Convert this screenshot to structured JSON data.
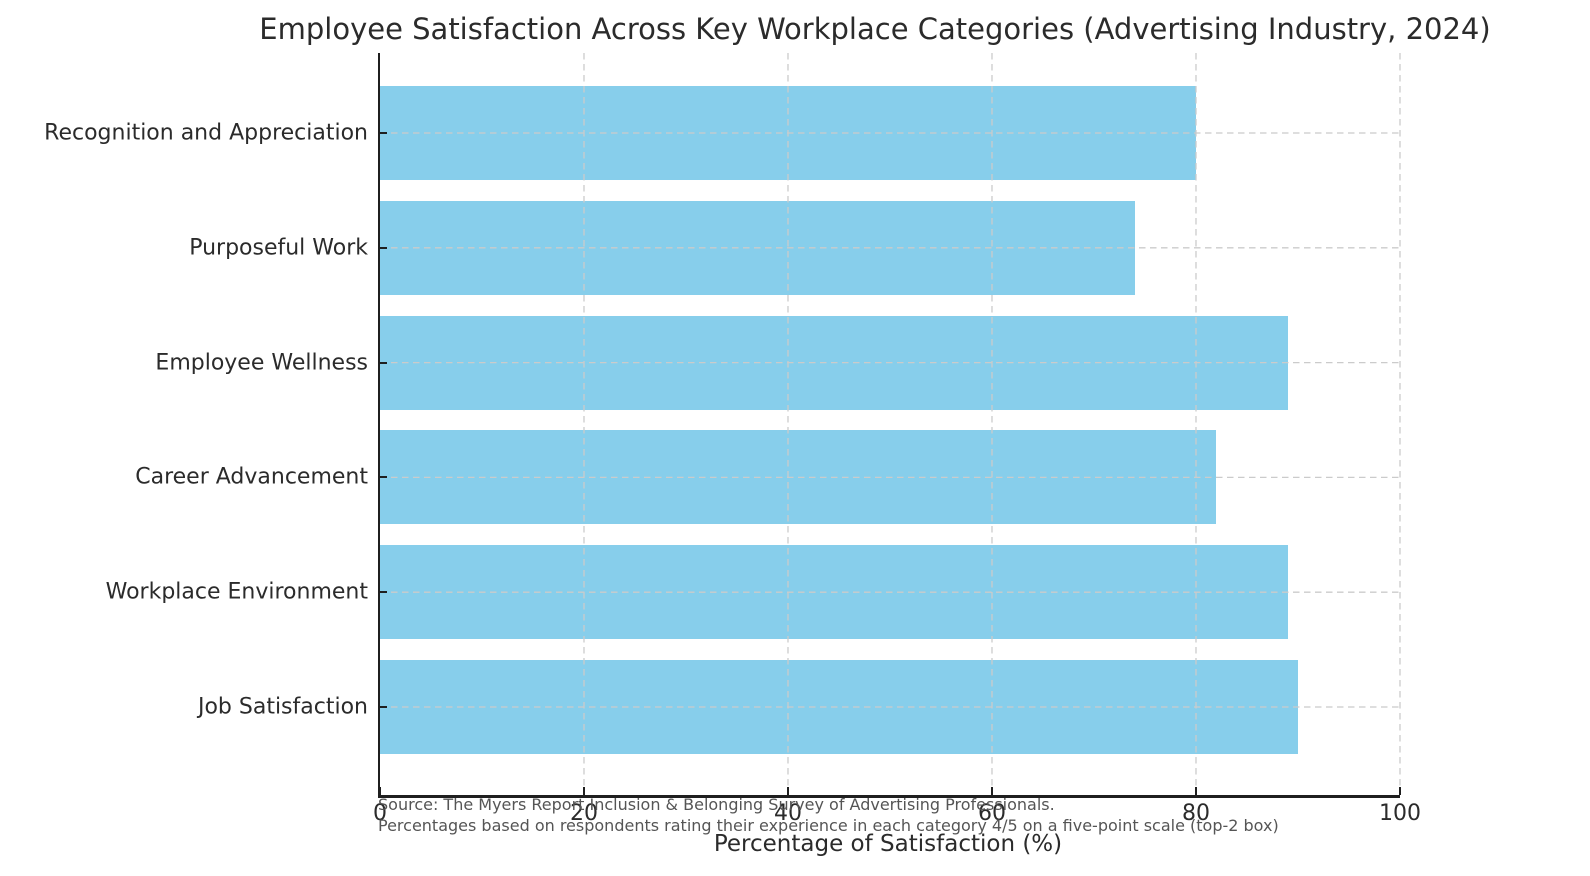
{
  "chart_data": {
    "type": "bar",
    "orientation": "horizontal",
    "title": "Employee Satisfaction Across Key Workplace Categories (Advertising Industry, 2024)",
    "categories": [
      "Recognition and Appreciation",
      "Purposeful Work",
      "Employee Wellness",
      "Career Advancement",
      "Workplace Environment",
      "Job Satisfaction"
    ],
    "values": [
      80,
      74,
      89,
      82,
      89,
      90
    ],
    "xlabel": "Percentage of Satisfaction (%)",
    "ylabel": "",
    "xlim": [
      0,
      100
    ],
    "x_ticks": [
      0,
      20,
      40,
      60,
      80,
      100
    ],
    "grid": "dashed gridlines on both axes, drawn over bars",
    "legend": "none",
    "bar_color": "#87CEEB",
    "background_color": "#FFFFFF",
    "axis_color": "#1F1F1F",
    "grid_color": "#CBCBCB",
    "footnote_color": "#555555",
    "footnotes": {
      "line1": "Source: The Myers Report Inclusion & Belonging Survey of Advertising Professionals.",
      "line2": "Percentages based on respondents rating their experience in each category 4/5 on a five-point scale (top-2 box)"
    }
  }
}
